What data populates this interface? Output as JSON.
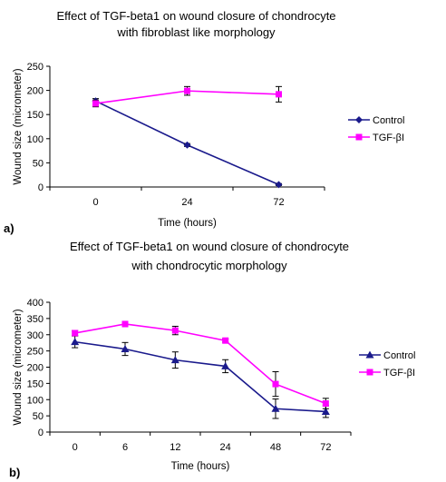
{
  "chart_data": [
    {
      "panel_label": "a)",
      "type": "line",
      "title": [
        "Effect of TGF-beta1 on wound closure of chondrocyte",
        "with fibroblast like morphology"
      ],
      "xlabel": "Time (hours)",
      "ylabel": "Wound size (micrometer)",
      "categories": [
        "0",
        "24",
        "72"
      ],
      "ylim": [
        0,
        250
      ],
      "yticks": [
        "0",
        "50",
        "100",
        "150",
        "200",
        "250"
      ],
      "grid": false,
      "legend_position": "right",
      "series": [
        {
          "name": "Control",
          "color": "#1a1a8c",
          "marker": "diamond",
          "values": [
            178,
            87,
            5
          ],
          "errors": [
            5,
            3,
            2
          ]
        },
        {
          "name": "TGF-βI",
          "color": "#ff00ff",
          "marker": "square",
          "values": [
            173,
            199,
            192
          ],
          "errors": [
            7,
            9,
            16
          ]
        }
      ]
    },
    {
      "panel_label": "b)",
      "type": "line",
      "title": [
        "Effect of TGF-beta1 on wound closure of chondrocyte",
        "with chondrocytic morphology"
      ],
      "xlabel": "Time (hours)",
      "ylabel": "Wound size (micrometer)",
      "categories": [
        "0",
        "6",
        "12",
        "24",
        "48",
        "72"
      ],
      "ylim": [
        0,
        400
      ],
      "yticks": [
        "0",
        "50",
        "100",
        "150",
        "200",
        "250",
        "300",
        "350",
        "400"
      ],
      "grid": false,
      "legend_position": "right",
      "series": [
        {
          "name": "Control",
          "color": "#1a1a8c",
          "marker": "triangle",
          "values": [
            278,
            256,
            222,
            203,
            72,
            63
          ],
          "errors": [
            18,
            20,
            25,
            20,
            30,
            18
          ]
        },
        {
          "name": "TGF-βI",
          "color": "#ff00ff",
          "marker": "square",
          "values": [
            305,
            333,
            313,
            282,
            148,
            88
          ],
          "errors": [
            8,
            8,
            13,
            5,
            38,
            16
          ]
        }
      ]
    }
  ]
}
